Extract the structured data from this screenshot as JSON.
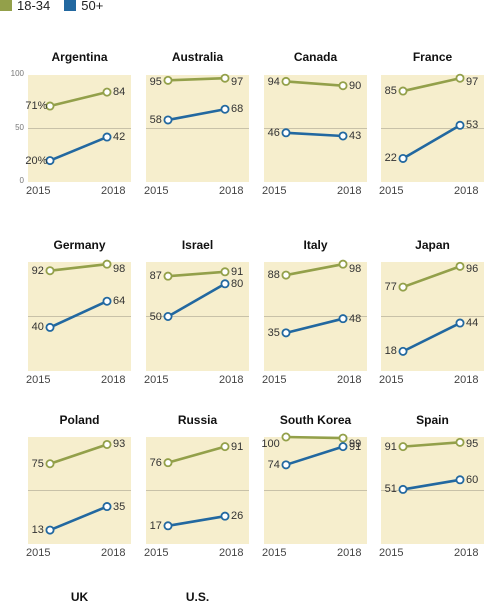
{
  "legend": [
    {
      "label": "18-34",
      "color": "#93a04a"
    },
    {
      "label": "50+",
      "color": "#2268a0"
    }
  ],
  "colors": {
    "panel_bg": "#f6eecd",
    "grid": "#b9b29b",
    "marker_fill": "#ffffff"
  },
  "chart_data": {
    "type": "line",
    "layout": "small-multiples",
    "x": [
      "2015",
      "2018"
    ],
    "ylim": [
      0,
      100
    ],
    "yticks": [
      "0",
      "50",
      "100"
    ],
    "panels": [
      {
        "title": "Argentina",
        "series": [
          {
            "name": "18-34",
            "values": [
              71,
              84
            ],
            "labels": [
              "71%",
              "84"
            ]
          },
          {
            "name": "50+",
            "values": [
              20,
              42
            ],
            "labels": [
              "20%",
              "42"
            ]
          }
        ]
      },
      {
        "title": "Australia",
        "series": [
          {
            "name": "18-34",
            "values": [
              95,
              97
            ],
            "labels": [
              "95",
              "97"
            ]
          },
          {
            "name": "50+",
            "values": [
              58,
              68
            ],
            "labels": [
              "58",
              "68"
            ]
          }
        ]
      },
      {
        "title": "Canada",
        "series": [
          {
            "name": "18-34",
            "values": [
              94,
              90
            ],
            "labels": [
              "94",
              "90"
            ]
          },
          {
            "name": "50+",
            "values": [
              46,
              43
            ],
            "labels": [
              "46",
              "43"
            ]
          }
        ]
      },
      {
        "title": "France",
        "series": [
          {
            "name": "18-34",
            "values": [
              85,
              97
            ],
            "labels": [
              "85",
              "97"
            ]
          },
          {
            "name": "50+",
            "values": [
              22,
              53
            ],
            "labels": [
              "22",
              "53"
            ]
          }
        ]
      },
      {
        "title": "Germany",
        "series": [
          {
            "name": "18-34",
            "values": [
              92,
              98
            ],
            "labels": [
              "92",
              "98"
            ]
          },
          {
            "name": "50+",
            "values": [
              40,
              64
            ],
            "labels": [
              "40",
              "64"
            ]
          }
        ]
      },
      {
        "title": "Israel",
        "series": [
          {
            "name": "18-34",
            "values": [
              87,
              91
            ],
            "labels": [
              "87",
              "91"
            ]
          },
          {
            "name": "50+",
            "values": [
              50,
              80
            ],
            "labels": [
              "50",
              "80"
            ]
          }
        ]
      },
      {
        "title": "Italy",
        "series": [
          {
            "name": "18-34",
            "values": [
              88,
              98
            ],
            "labels": [
              "88",
              "98"
            ]
          },
          {
            "name": "50+",
            "values": [
              35,
              48
            ],
            "labels": [
              "35",
              "48"
            ]
          }
        ]
      },
      {
        "title": "Japan",
        "series": [
          {
            "name": "18-34",
            "values": [
              77,
              96
            ],
            "labels": [
              "77",
              "96"
            ]
          },
          {
            "name": "50+",
            "values": [
              18,
              44
            ],
            "labels": [
              "18",
              "44"
            ]
          }
        ]
      },
      {
        "title": "Poland",
        "series": [
          {
            "name": "18-34",
            "values": [
              75,
              93
            ],
            "labels": [
              "75",
              "93"
            ]
          },
          {
            "name": "50+",
            "values": [
              13,
              35
            ],
            "labels": [
              "13",
              "35"
            ]
          }
        ]
      },
      {
        "title": "Russia",
        "series": [
          {
            "name": "18-34",
            "values": [
              76,
              91
            ],
            "labels": [
              "76",
              "91"
            ]
          },
          {
            "name": "50+",
            "values": [
              17,
              26
            ],
            "labels": [
              "17",
              "26"
            ]
          }
        ]
      },
      {
        "title": "South Korea",
        "series": [
          {
            "name": "18-34",
            "values": [
              100,
              99
            ],
            "labels": [
              "100",
              "99"
            ]
          },
          {
            "name": "50+",
            "values": [
              74,
              91
            ],
            "labels": [
              "74",
              "91"
            ]
          }
        ]
      },
      {
        "title": "Spain",
        "series": [
          {
            "name": "18-34",
            "values": [
              91,
              95
            ],
            "labels": [
              "91",
              "95"
            ]
          },
          {
            "name": "50+",
            "values": [
              51,
              60
            ],
            "labels": [
              "51",
              "60"
            ]
          }
        ]
      },
      {
        "title": "UK",
        "series": []
      },
      {
        "title": "U.S.",
        "series": []
      }
    ]
  }
}
